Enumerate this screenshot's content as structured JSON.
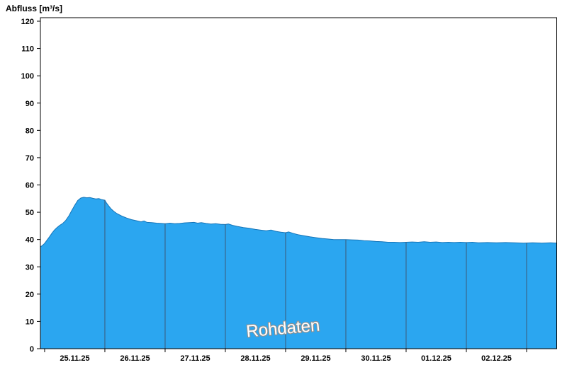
{
  "title": "Abfluss [m³/s]",
  "chart_data": {
    "type": "area",
    "title": "Abfluss [m³/s]",
    "ylabel": "Abfluss [m³/s]",
    "xlabel": "",
    "ylim": [
      0,
      120
    ],
    "ytick_step": 10,
    "ytick_labels": [
      "0",
      "10",
      "20",
      "30",
      "40",
      "50",
      "60",
      "70",
      "80",
      "90",
      "100",
      "110",
      "120"
    ],
    "x_date_labels": [
      "25.11.25",
      "26.11.25",
      "27.11.25",
      "28.11.25",
      "29.11.25",
      "30.11.25",
      "01.12.25",
      "02.12.25"
    ],
    "x_domain_days": [
      -0.07,
      8.5
    ],
    "day_boundaries": [
      0,
      1,
      2,
      3,
      4,
      5,
      6,
      7,
      8
    ],
    "grid": "vertical-day-lines-clipped-to-area",
    "legend": "none",
    "watermark": {
      "text": "Rohdaten",
      "rotation_deg": -5
    },
    "colors": {
      "area_fill": "#2BA6F0",
      "area_edge": "#1474B8",
      "day_line": "#3C5A78",
      "frame": "#000000",
      "tick_text": "#000000",
      "watermark_fill": "#FFFFFF",
      "watermark_outline": "#8F8F8F"
    },
    "series": [
      {
        "name": "Rohdaten",
        "unit": "m³/s",
        "points": [
          [
            -0.07,
            37.3
          ],
          [
            -0.04,
            37.8
          ],
          [
            0,
            38.6
          ],
          [
            0.04,
            39.8
          ],
          [
            0.08,
            41.0
          ],
          [
            0.12,
            42.3
          ],
          [
            0.16,
            43.4
          ],
          [
            0.2,
            44.3
          ],
          [
            0.25,
            45.2
          ],
          [
            0.3,
            45.9
          ],
          [
            0.35,
            47.0
          ],
          [
            0.4,
            48.6
          ],
          [
            0.45,
            50.6
          ],
          [
            0.5,
            52.6
          ],
          [
            0.55,
            54.3
          ],
          [
            0.6,
            55.2
          ],
          [
            0.65,
            55.5
          ],
          [
            0.7,
            55.3
          ],
          [
            0.75,
            55.4
          ],
          [
            0.8,
            55.1
          ],
          [
            0.85,
            54.9
          ],
          [
            0.9,
            55.0
          ],
          [
            0.95,
            54.6
          ],
          [
            1.0,
            54.4
          ],
          [
            1.02,
            53.6
          ],
          [
            1.06,
            52.4
          ],
          [
            1.1,
            51.3
          ],
          [
            1.15,
            50.3
          ],
          [
            1.2,
            49.5
          ],
          [
            1.28,
            48.6
          ],
          [
            1.36,
            47.9
          ],
          [
            1.44,
            47.3
          ],
          [
            1.52,
            46.9
          ],
          [
            1.6,
            46.5
          ],
          [
            1.65,
            46.8
          ],
          [
            1.7,
            46.3
          ],
          [
            1.78,
            46.2
          ],
          [
            1.86,
            46.0
          ],
          [
            1.94,
            45.9
          ],
          [
            2.0,
            45.8
          ],
          [
            2.08,
            46.0
          ],
          [
            2.16,
            45.8
          ],
          [
            2.24,
            45.9
          ],
          [
            2.32,
            46.1
          ],
          [
            2.4,
            46.2
          ],
          [
            2.48,
            46.3
          ],
          [
            2.54,
            46.0
          ],
          [
            2.6,
            46.2
          ],
          [
            2.68,
            45.9
          ],
          [
            2.76,
            45.7
          ],
          [
            2.84,
            45.8
          ],
          [
            2.92,
            45.6
          ],
          [
            3.0,
            45.5
          ],
          [
            3.05,
            45.7
          ],
          [
            3.12,
            45.2
          ],
          [
            3.2,
            44.8
          ],
          [
            3.3,
            44.4
          ],
          [
            3.4,
            44.1
          ],
          [
            3.5,
            43.7
          ],
          [
            3.6,
            43.4
          ],
          [
            3.68,
            43.2
          ],
          [
            3.76,
            43.5
          ],
          [
            3.84,
            43.0
          ],
          [
            3.92,
            42.7
          ],
          [
            4.0,
            42.5
          ],
          [
            4.05,
            42.8
          ],
          [
            4.12,
            42.3
          ],
          [
            4.2,
            41.8
          ],
          [
            4.3,
            41.4
          ],
          [
            4.4,
            41.0
          ],
          [
            4.5,
            40.7
          ],
          [
            4.6,
            40.4
          ],
          [
            4.7,
            40.2
          ],
          [
            4.8,
            40.0
          ],
          [
            4.9,
            40.0
          ],
          [
            5.0,
            40.0
          ],
          [
            5.1,
            39.9
          ],
          [
            5.2,
            39.8
          ],
          [
            5.3,
            39.6
          ],
          [
            5.4,
            39.5
          ],
          [
            5.5,
            39.3
          ],
          [
            5.6,
            39.2
          ],
          [
            5.7,
            39.0
          ],
          [
            5.8,
            39.0
          ],
          [
            5.9,
            38.9
          ],
          [
            6.0,
            39.0
          ],
          [
            6.1,
            39.1
          ],
          [
            6.2,
            39.0
          ],
          [
            6.3,
            39.2
          ],
          [
            6.4,
            39.0
          ],
          [
            6.5,
            39.1
          ],
          [
            6.6,
            38.9
          ],
          [
            6.7,
            39.0
          ],
          [
            6.8,
            38.9
          ],
          [
            6.9,
            39.0
          ],
          [
            7.0,
            38.9
          ],
          [
            7.1,
            39.0
          ],
          [
            7.2,
            38.8
          ],
          [
            7.35,
            38.9
          ],
          [
            7.5,
            38.8
          ],
          [
            7.65,
            38.9
          ],
          [
            7.8,
            38.8
          ],
          [
            7.95,
            38.7
          ],
          [
            8.1,
            38.8
          ],
          [
            8.25,
            38.7
          ],
          [
            8.4,
            38.8
          ],
          [
            8.5,
            38.7
          ]
        ]
      }
    ]
  }
}
